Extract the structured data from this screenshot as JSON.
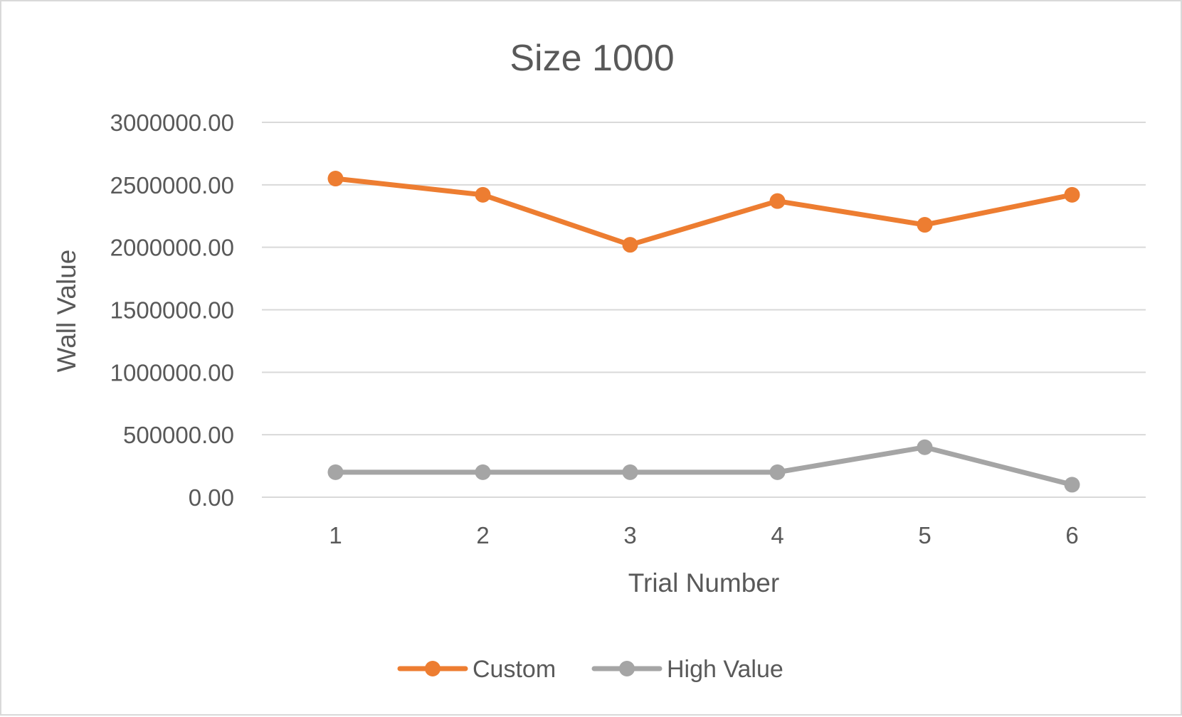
{
  "chart_data": {
    "type": "line",
    "title": "Size 1000",
    "xlabel": "Trial Number",
    "ylabel": "Wall Value",
    "categories": [
      "1",
      "2",
      "3",
      "4",
      "5",
      "6"
    ],
    "yticks": [
      "0.00",
      "500000.00",
      "1000000.00",
      "1500000.00",
      "2000000.00",
      "2500000.00",
      "3000000.00"
    ],
    "ylim": [
      0,
      3000000
    ],
    "grid": true,
    "legend_position": "bottom",
    "series": [
      {
        "name": "Custom",
        "color": "#ed7d31",
        "values": [
          2550000,
          2420000,
          2020000,
          2370000,
          2180000,
          2420000
        ]
      },
      {
        "name": "High Value",
        "color": "#a5a5a5",
        "values": [
          200000,
          200000,
          200000,
          200000,
          400000,
          100000
        ]
      }
    ]
  }
}
